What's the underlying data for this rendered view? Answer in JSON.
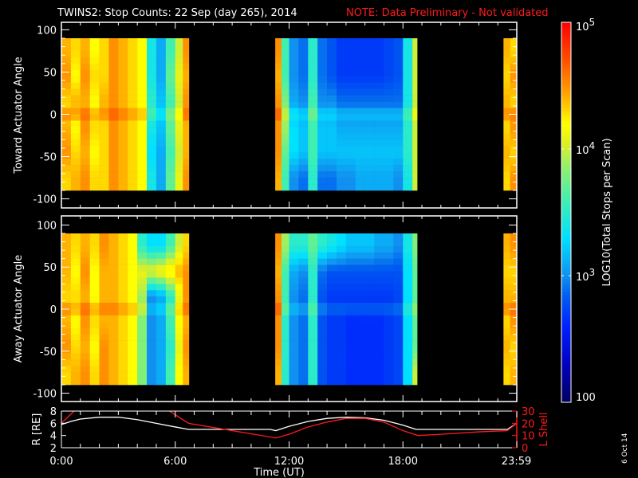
{
  "title": "TWINS2: Stop Counts: 22 Sep (day 265), 2014",
  "note": "NOTE: Data Preliminary - Not validated",
  "footer_date": "6 Oct 14",
  "chart_data": {
    "type": "heatmap",
    "xlabel": "Time (UT)",
    "xlim": [
      0,
      24
    ],
    "x_ticks": [
      {
        "v": 0,
        "label": "0:00"
      },
      {
        "v": 6,
        "label": "6:00"
      },
      {
        "v": 12,
        "label": "12:00"
      },
      {
        "v": 18,
        "label": "18:00"
      },
      {
        "v": 23.98,
        "label": "23:59"
      }
    ],
    "colorbar": {
      "label": "LOG10(Total Stops per Scan)",
      "log_range": [
        2,
        5
      ],
      "ticks": [
        {
          "v": 5,
          "base": "10",
          "exp": "5"
        },
        {
          "v": 4,
          "base": "10",
          "exp": "4"
        },
        {
          "v": 3,
          "base": "10",
          "exp": "3"
        },
        {
          "v": 2,
          "base": "100",
          "exp": ""
        }
      ]
    },
    "angle_bins": [
      75,
      45,
      15,
      -15,
      -45,
      -75
    ],
    "panels": [
      {
        "ylabel": "Toward Actuator Angle",
        "ylim": [
          -110,
          110
        ],
        "y_ticks": [
          100,
          50,
          0,
          -50,
          -100
        ],
        "columns": [
          {
            "t": [
              0,
              0.5
            ],
            "v": [
              4.4,
              4.5,
              4.3,
              4.4,
              4.5,
              4.3
            ]
          },
          {
            "t": [
              0.5,
              1
            ],
            "v": [
              4.3,
              4.2,
              4.4,
              4.2,
              4.3,
              4.4
            ]
          },
          {
            "t": [
              1,
              1.5
            ],
            "v": [
              4.4,
              4.5,
              4.4,
              4.5,
              4.4,
              4.5
            ]
          },
          {
            "t": [
              1.5,
              2
            ],
            "v": [
              4.2,
              4.3,
              4.2,
              4.3,
              4.2,
              4.3
            ]
          },
          {
            "t": [
              2,
              2.5
            ],
            "v": [
              4.3,
              4.3,
              4.4,
              4.3,
              4.3,
              4.3
            ]
          },
          {
            "t": [
              2.5,
              3
            ],
            "v": [
              4.5,
              4.5,
              4.5,
              4.5,
              4.5,
              4.5
            ]
          },
          {
            "t": [
              3,
              3.5
            ],
            "v": [
              4.4,
              4.4,
              4.4,
              4.4,
              4.4,
              4.4
            ]
          },
          {
            "t": [
              3.5,
              4
            ],
            "v": [
              4.3,
              4.3,
              4.3,
              4.3,
              4.3,
              4.3
            ]
          },
          {
            "t": [
              4,
              4.5
            ],
            "v": [
              4.2,
              4.2,
              4.2,
              4.2,
              4.2,
              4.2
            ]
          },
          {
            "t": [
              4.5,
              5
            ],
            "v": [
              3.4,
              3.4,
              3.5,
              3.4,
              3.3,
              3.4
            ]
          },
          {
            "t": [
              5,
              5.5
            ],
            "v": [
              3.1,
              3.1,
              3.2,
              3.2,
              3.1,
              3.1
            ]
          },
          {
            "t": [
              5.5,
              6
            ],
            "v": [
              3.6,
              3.7,
              3.6,
              3.7,
              3.6,
              3.7
            ]
          },
          {
            "t": [
              6,
              6.4
            ],
            "v": [
              4.0,
              4.1,
              4.0,
              4.1,
              4.0,
              4.1
            ]
          },
          {
            "t": [
              6.4,
              6.72
            ],
            "v": [
              4.5,
              4.4,
              4.5,
              4.4,
              4.4,
              4.5
            ]
          },
          {
            "t": [
              11.27,
              11.6
            ],
            "v": [
              4.5,
              4.4,
              4.5,
              4.5,
              4.5,
              4.4
            ]
          },
          {
            "t": [
              11.6,
              12
            ],
            "v": [
              3.6,
              3.6,
              3.8,
              3.9,
              3.7,
              3.6
            ]
          },
          {
            "t": [
              12,
              12.5
            ],
            "v": [
              3.0,
              3.0,
              3.1,
              3.3,
              3.3,
              3.0
            ]
          },
          {
            "t": [
              12.5,
              13
            ],
            "v": [
              2.9,
              2.9,
              3.0,
              3.2,
              3.2,
              2.9
            ]
          },
          {
            "t": [
              13,
              13.5
            ],
            "v": [
              3.5,
              3.5,
              3.6,
              3.6,
              3.6,
              3.5
            ]
          },
          {
            "t": [
              13.5,
              14
            ],
            "v": [
              2.9,
              2.9,
              3.0,
              3.2,
              3.2,
              2.9
            ]
          },
          {
            "t": [
              14,
              14.5
            ],
            "v": [
              2.8,
              2.8,
              3.0,
              3.2,
              3.2,
              2.9
            ]
          },
          {
            "t": [
              14.5,
              15
            ],
            "v": [
              2.7,
              2.7,
              2.9,
              3.1,
              3.2,
              3.0
            ]
          },
          {
            "t": [
              15,
              15.5
            ],
            "v": [
              2.7,
              2.7,
              2.9,
              3.1,
              3.2,
              3.0
            ]
          },
          {
            "t": [
              15.5,
              16
            ],
            "v": [
              2.7,
              2.7,
              2.9,
              3.1,
              3.2,
              3.1
            ]
          },
          {
            "t": [
              16,
              16.5
            ],
            "v": [
              2.7,
              2.7,
              2.9,
              3.1,
              3.2,
              3.1
            ]
          },
          {
            "t": [
              16.5,
              17
            ],
            "v": [
              2.7,
              2.7,
              2.9,
              3.1,
              3.2,
              3.1
            ]
          },
          {
            "t": [
              17,
              17.5
            ],
            "v": [
              2.75,
              2.75,
              2.9,
              3.1,
              3.2,
              3.1
            ]
          },
          {
            "t": [
              17.5,
              18
            ],
            "v": [
              2.8,
              2.8,
              2.9,
              3.1,
              3.2,
              3.0
            ]
          },
          {
            "t": [
              18,
              18.5
            ],
            "v": [
              3.4,
              3.4,
              3.4,
              3.5,
              3.5,
              3.4
            ]
          },
          {
            "t": [
              18.5,
              18.75
            ],
            "v": [
              4.0,
              4.0,
              4.0,
              4.0,
              4.0,
              4.0
            ]
          },
          {
            "t": [
              23.3,
              23.65
            ],
            "v": [
              4.4,
              4.3,
              4.4,
              4.3,
              4.4,
              4.3
            ]
          },
          {
            "t": [
              23.65,
              24
            ],
            "v": [
              4.3,
              4.5,
              4.3,
              4.5,
              4.3,
              4.5
            ]
          }
        ]
      },
      {
        "ylabel": "Away Actuator Angle",
        "ylim": [
          -110,
          110
        ],
        "y_ticks": [
          100,
          50,
          0,
          -50,
          -100
        ],
        "columns": [
          {
            "t": [
              0,
              0.5
            ],
            "v": [
              4.4,
              4.4,
              4.3,
              4.4,
              4.5,
              4.3
            ]
          },
          {
            "t": [
              0.5,
              1
            ],
            "v": [
              4.3,
              4.2,
              4.3,
              4.2,
              4.3,
              4.4
            ]
          },
          {
            "t": [
              1,
              1.5
            ],
            "v": [
              4.4,
              4.5,
              4.4,
              4.5,
              4.4,
              4.5
            ]
          },
          {
            "t": [
              1.5,
              2
            ],
            "v": [
              4.3,
              4.2,
              4.2,
              4.3,
              4.2,
              4.3
            ]
          },
          {
            "t": [
              2,
              2.5
            ],
            "v": [
              4.5,
              4.4,
              4.4,
              4.4,
              4.5,
              4.5
            ]
          },
          {
            "t": [
              2.5,
              3
            ],
            "v": [
              4.4,
              4.4,
              4.4,
              4.4,
              4.4,
              4.4
            ]
          },
          {
            "t": [
              3,
              3.5
            ],
            "v": [
              4.3,
              4.3,
              4.3,
              4.3,
              4.3,
              4.3
            ]
          },
          {
            "t": [
              3.5,
              4
            ],
            "v": [
              4.2,
              4.2,
              4.2,
              4.2,
              4.2,
              4.2
            ]
          },
          {
            "t": [
              4,
              4.5
            ],
            "v": [
              3.5,
              4.1,
              3.9,
              3.8,
              3.8,
              3.8
            ]
          },
          {
            "t": [
              4.5,
              5
            ],
            "v": [
              3.3,
              4.1,
              3.0,
              3.0,
              3.0,
              3.0
            ]
          },
          {
            "t": [
              5,
              5.5
            ],
            "v": [
              3.3,
              4.2,
              3.1,
              3.1,
              3.1,
              3.1
            ]
          },
          {
            "t": [
              5.5,
              6
            ],
            "v": [
              3.6,
              4.3,
              3.5,
              3.6,
              3.5,
              3.6
            ]
          },
          {
            "t": [
              6,
              6.4
            ],
            "v": [
              4.0,
              4.4,
              4.1,
              4.2,
              4.1,
              4.2
            ]
          },
          {
            "t": [
              6.4,
              6.72
            ],
            "v": [
              4.3,
              4.5,
              4.5,
              4.4,
              4.5,
              4.4
            ]
          },
          {
            "t": [
              11.27,
              11.6
            ],
            "v": [
              4.5,
              4.4,
              4.5,
              4.5,
              4.5,
              4.4
            ]
          },
          {
            "t": [
              11.6,
              12
            ],
            "v": [
              3.9,
              3.6,
              3.6,
              3.5,
              3.5,
              3.5
            ]
          },
          {
            "t": [
              12,
              12.5
            ],
            "v": [
              3.5,
              3.1,
              3.0,
              3.0,
              3.0,
              3.0
            ]
          },
          {
            "t": [
              12.5,
              13
            ],
            "v": [
              3.5,
              3.0,
              2.9,
              2.9,
              2.9,
              2.9
            ]
          },
          {
            "t": [
              13,
              13.5
            ],
            "v": [
              3.7,
              3.5,
              3.5,
              3.5,
              3.5,
              3.5
            ]
          },
          {
            "t": [
              13.5,
              14
            ],
            "v": [
              3.5,
              2.9,
              2.8,
              2.8,
              2.8,
              2.8
            ]
          },
          {
            "t": [
              14,
              14.5
            ],
            "v": [
              3.4,
              2.8,
              2.7,
              2.7,
              2.7,
              2.7
            ]
          },
          {
            "t": [
              14.5,
              15
            ],
            "v": [
              3.3,
              2.8,
              2.7,
              2.7,
              2.7,
              2.7
            ]
          },
          {
            "t": [
              15,
              15.5
            ],
            "v": [
              3.2,
              2.8,
              2.7,
              2.65,
              2.65,
              2.65
            ]
          },
          {
            "t": [
              15.5,
              16
            ],
            "v": [
              3.2,
              2.8,
              2.7,
              2.65,
              2.65,
              2.65
            ]
          },
          {
            "t": [
              16,
              16.5
            ],
            "v": [
              3.2,
              2.8,
              2.7,
              2.65,
              2.65,
              2.65
            ]
          },
          {
            "t": [
              16.5,
              17
            ],
            "v": [
              3.1,
              2.8,
              2.7,
              2.65,
              2.65,
              2.65
            ]
          },
          {
            "t": [
              17,
              17.5
            ],
            "v": [
              3.1,
              2.8,
              2.7,
              2.7,
              2.7,
              2.7
            ]
          },
          {
            "t": [
              17.5,
              18
            ],
            "v": [
              3.0,
              2.8,
              2.75,
              2.75,
              2.75,
              2.75
            ]
          },
          {
            "t": [
              18,
              18.5
            ],
            "v": [
              3.4,
              3.3,
              3.3,
              3.3,
              3.3,
              3.3
            ]
          },
          {
            "t": [
              18.5,
              18.75
            ],
            "v": [
              3.8,
              3.7,
              3.7,
              3.7,
              3.7,
              4.0
            ]
          },
          {
            "t": [
              23.3,
              23.65
            ],
            "v": [
              4.4,
              4.3,
              4.4,
              4.3,
              4.4,
              4.3
            ]
          },
          {
            "t": [
              23.65,
              24
            ],
            "v": [
              4.5,
              4.3,
              4.4,
              4.5,
              4.3,
              4.4
            ]
          }
        ]
      }
    ],
    "orbit": {
      "left_label": "R [RE]",
      "left_ylim": [
        2,
        8
      ],
      "left_ticks": [
        8,
        6,
        4,
        2
      ],
      "right_label": "L Shell",
      "right_ylim": [
        0,
        30
      ],
      "right_ticks": [
        30,
        20,
        10,
        0
      ],
      "r_series": {
        "name": "R",
        "color": "#ffffff",
        "x": [
          0,
          0.5,
          1,
          2,
          3,
          4,
          5,
          6,
          6.7,
          11,
          11.3,
          12,
          13,
          14,
          15,
          16,
          17,
          18,
          18.7,
          23.5,
          24
        ],
        "y": [
          5.8,
          6.3,
          6.7,
          7.0,
          7.0,
          6.6,
          6.0,
          5.4,
          5.0,
          5.0,
          4.8,
          5.5,
          6.3,
          6.8,
          7.0,
          6.9,
          6.5,
          5.7,
          5.0,
          5.0,
          6.0
        ]
      },
      "l_series": {
        "name": "L Shell",
        "color": "#ff1a1a",
        "x": [
          0,
          0.8,
          5.5,
          6.7,
          11.3,
          12,
          13,
          14,
          15,
          16,
          17,
          18,
          18.8,
          20,
          22,
          23.5,
          24
        ],
        "y": [
          20,
          32,
          32,
          20,
          8,
          11,
          17,
          21,
          24,
          24,
          21,
          14,
          10,
          11,
          13,
          14,
          20
        ]
      }
    }
  }
}
